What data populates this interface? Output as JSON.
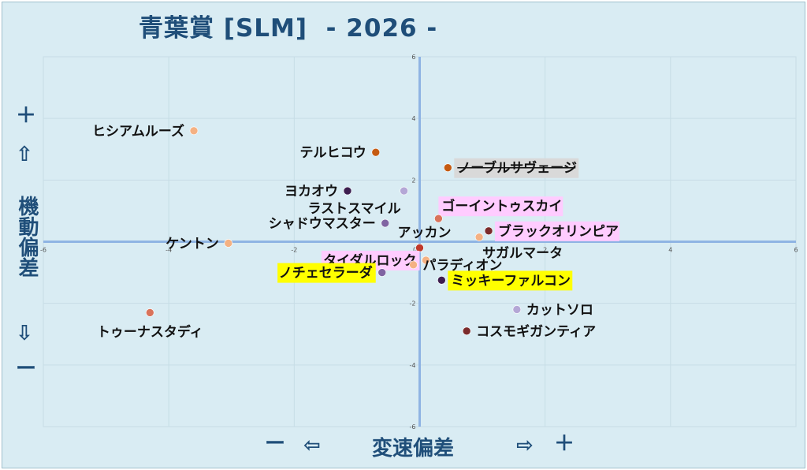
{
  "title": "青葉賞 [SLM]  - 2026 -",
  "axis_text": {
    "y_plus": "＋",
    "y_up_arrow": "⇧",
    "y_label": "機動偏差",
    "y_down_arrow": "⇩",
    "y_minus": "ー",
    "x_minus": "ー",
    "x_left_arrow": "⇦",
    "x_label": "変速偏差",
    "x_right_arrow": "⇨",
    "x_plus": "＋"
  },
  "colors": {
    "background": "#d9ecf3",
    "axis": "#8fb4e3",
    "title": "#1f4e79",
    "highlight_pink": "#ffccff",
    "highlight_yellow": "#ffff00",
    "highlight_gray": "#d9d9d9"
  },
  "chart_data": {
    "type": "scatter",
    "xlabel": "変速偏差",
    "ylabel": "機動偏差",
    "xlim": [
      -6,
      6
    ],
    "ylim": [
      -6,
      6
    ],
    "x_ticks": [
      "-6",
      "-4",
      "-2",
      "0",
      "2",
      "4",
      "6"
    ],
    "y_ticks": [
      "6",
      "4",
      "2",
      "0",
      "-2",
      "-4",
      "-6"
    ],
    "grid": true,
    "points": [
      {
        "label": "ヒシアムルーズ",
        "x": -3.6,
        "y": 3.6,
        "color": "#f4b183",
        "label_side": "left",
        "highlight": "none"
      },
      {
        "label": "テルヒコウ",
        "x": -0.7,
        "y": 2.9,
        "color": "#c55a11",
        "label_side": "left",
        "highlight": "none"
      },
      {
        "label": "ノーブルサヴェージ",
        "x": 0.45,
        "y": 2.4,
        "color": "#c55a11",
        "label_side": "right",
        "highlight": "gray",
        "strike": true
      },
      {
        "label": "ヨカオウ",
        "x": -1.15,
        "y": 1.65,
        "color": "#3d1e4f",
        "label_side": "left",
        "highlight": "none"
      },
      {
        "label": "ラストスマイル",
        "x": -0.25,
        "y": 1.65,
        "color": "#b4a7d6",
        "label_side": "below-left",
        "highlight": "none"
      },
      {
        "label": "ゴーイントゥスカイ",
        "x": 0.3,
        "y": 0.75,
        "color": "#d9735b",
        "label_side": "above-right",
        "highlight": "pink"
      },
      {
        "label": "シャドウマスター",
        "x": -0.55,
        "y": 0.6,
        "color": "#8064a2",
        "label_side": "left",
        "highlight": "none"
      },
      {
        "label": "ブラックオリンピア",
        "x": 1.1,
        "y": 0.35,
        "color": "#7b2b2b",
        "label_side": "right",
        "highlight": "pink"
      },
      {
        "label": "アッカン",
        "x": 0.0,
        "y": -0.2,
        "color": "#c0392b",
        "label_side": "above-left",
        "highlight": "none"
      },
      {
        "label": "サガルマータ",
        "x": 0.95,
        "y": 0.15,
        "color": "#f4b183",
        "label_side": "below-right",
        "highlight": "none"
      },
      {
        "label": "ケントン",
        "x": -3.05,
        "y": -0.05,
        "color": "#f4b183",
        "label_side": "left",
        "highlight": "none"
      },
      {
        "label": "タイダルロック",
        "x": 0.1,
        "y": -0.6,
        "color": "#f4b183",
        "label_side": "left",
        "highlight": "pink"
      },
      {
        "label": "パラディオン",
        "x": -0.1,
        "y": -0.75,
        "color": "#f4b183",
        "label_side": "right",
        "highlight": "none"
      },
      {
        "label": "ノチェセラーダ",
        "x": -0.6,
        "y": -1.0,
        "color": "#8064a2",
        "label_side": "left",
        "highlight": "yellow"
      },
      {
        "label": "ミッキーファルコン",
        "x": 0.35,
        "y": -1.25,
        "color": "#3d1e4f",
        "label_side": "right",
        "highlight": "yellow"
      },
      {
        "label": "カットソロ",
        "x": 1.55,
        "y": -2.2,
        "color": "#b4a7d6",
        "label_side": "right",
        "highlight": "none"
      },
      {
        "label": "トゥーナスタディ",
        "x": -4.3,
        "y": -2.3,
        "color": "#d9735b",
        "label_side": "below",
        "highlight": "none"
      },
      {
        "label": "コスモギガンティア",
        "x": 0.75,
        "y": -2.9,
        "color": "#7b2b2b",
        "label_side": "right",
        "highlight": "none"
      }
    ]
  }
}
